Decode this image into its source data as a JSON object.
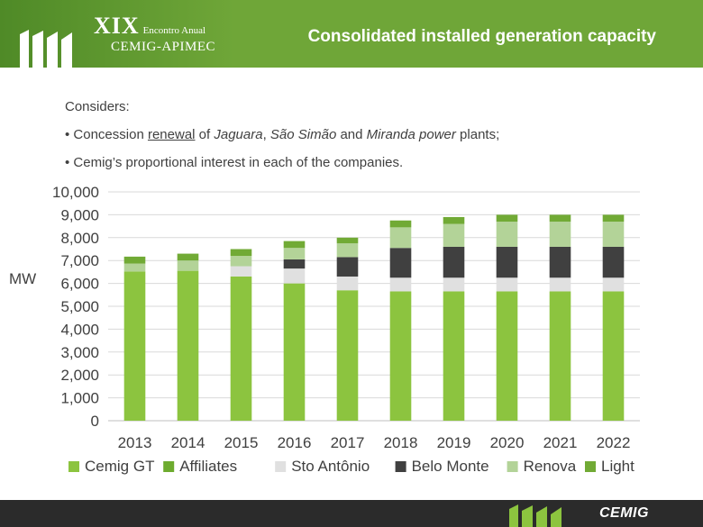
{
  "header": {
    "event_number": "XIX",
    "event_subtitle": "Encontro Anual",
    "event_name": "CEMIG-APIMEC",
    "slide_title": "Consolidated installed generation capacity"
  },
  "notes": {
    "heading": "Considers:",
    "bullet1": {
      "prefix": "• Concession ",
      "underlined": "renewal",
      "mid1": " of ",
      "plant1": "Jaguara",
      "sep1": ", ",
      "plant2": "São Simão",
      "mid2": " and ",
      "plant3": "Miranda power",
      "suffix": " plants;"
    },
    "bullet2": "• Cemig’s proportional interest in each of the companies."
  },
  "footer": {
    "brand": "CEMIG"
  },
  "colors": {
    "header_green": "#6fa638",
    "cemig_gt": "#8cc43f",
    "affiliates": "#6dab2f",
    "sto_antonio": "#e0e0e0",
    "belo_monte": "#404040",
    "renova": "#b3d398",
    "light": "#71aa35"
  },
  "chart_data": {
    "type": "bar",
    "stacked": true,
    "title": "",
    "xlabel": "",
    "ylabel": "MW",
    "ylim": [
      0,
      10000
    ],
    "yticks": [
      0,
      1000,
      2000,
      3000,
      4000,
      5000,
      6000,
      7000,
      8000,
      9000,
      10000
    ],
    "ytick_labels": [
      "0",
      "1,000",
      "2,000",
      "3,000",
      "4,000",
      "5,000",
      "6,000",
      "7,000",
      "8,000",
      "9,000",
      "10,000"
    ],
    "grid": true,
    "legend_position": "bottom",
    "categories": [
      "2013",
      "2014",
      "2015",
      "2016",
      "2017",
      "2018",
      "2019",
      "2020",
      "2021",
      "2022"
    ],
    "series": [
      {
        "name": "Cemig GT",
        "values": [
          6520,
          6550,
          6300,
          6000,
          5700,
          5650,
          5650,
          5650,
          5650,
          5650
        ]
      },
      {
        "name": "Affiliates",
        "values": [
          0,
          0,
          0,
          0,
          0,
          0,
          0,
          0,
          0,
          0
        ]
      },
      {
        "name": "Sto Antônio",
        "values": [
          0,
          0,
          450,
          650,
          600,
          600,
          600,
          600,
          600,
          600
        ]
      },
      {
        "name": "Belo Monte",
        "values": [
          0,
          0,
          0,
          400,
          850,
          1300,
          1350,
          1350,
          1350,
          1350
        ]
      },
      {
        "name": "Renova",
        "values": [
          350,
          450,
          450,
          500,
          600,
          900,
          1000,
          1100,
          1100,
          1100
        ]
      },
      {
        "name": "Light",
        "values": [
          300,
          300,
          300,
          300,
          250,
          300,
          300,
          300,
          300,
          300
        ]
      }
    ]
  }
}
